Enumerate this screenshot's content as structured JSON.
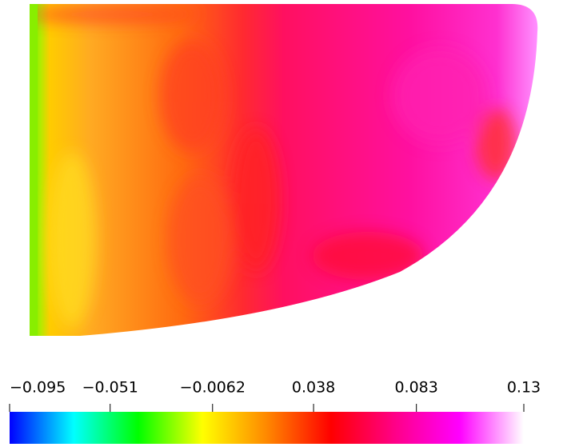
{
  "chart_data": {
    "type": "colorbar-field",
    "clim": [
      -0.095,
      0.13
    ],
    "ticks": [
      {
        "value": -0.095,
        "label": "−0.095"
      },
      {
        "value": -0.051,
        "label": "−0.051"
      },
      {
        "value": -0.0062,
        "label": "−0.0062"
      },
      {
        "value": 0.038,
        "label": "0.038"
      },
      {
        "value": 0.083,
        "label": "0.083"
      },
      0.13
    ],
    "colormap": [
      "#0000ff",
      "#00ffff",
      "#00ff00",
      "#ffff00",
      "#ff8800",
      "#ff0000",
      "#ff0088",
      "#ff00ff",
      "#ffffff"
    ]
  }
}
